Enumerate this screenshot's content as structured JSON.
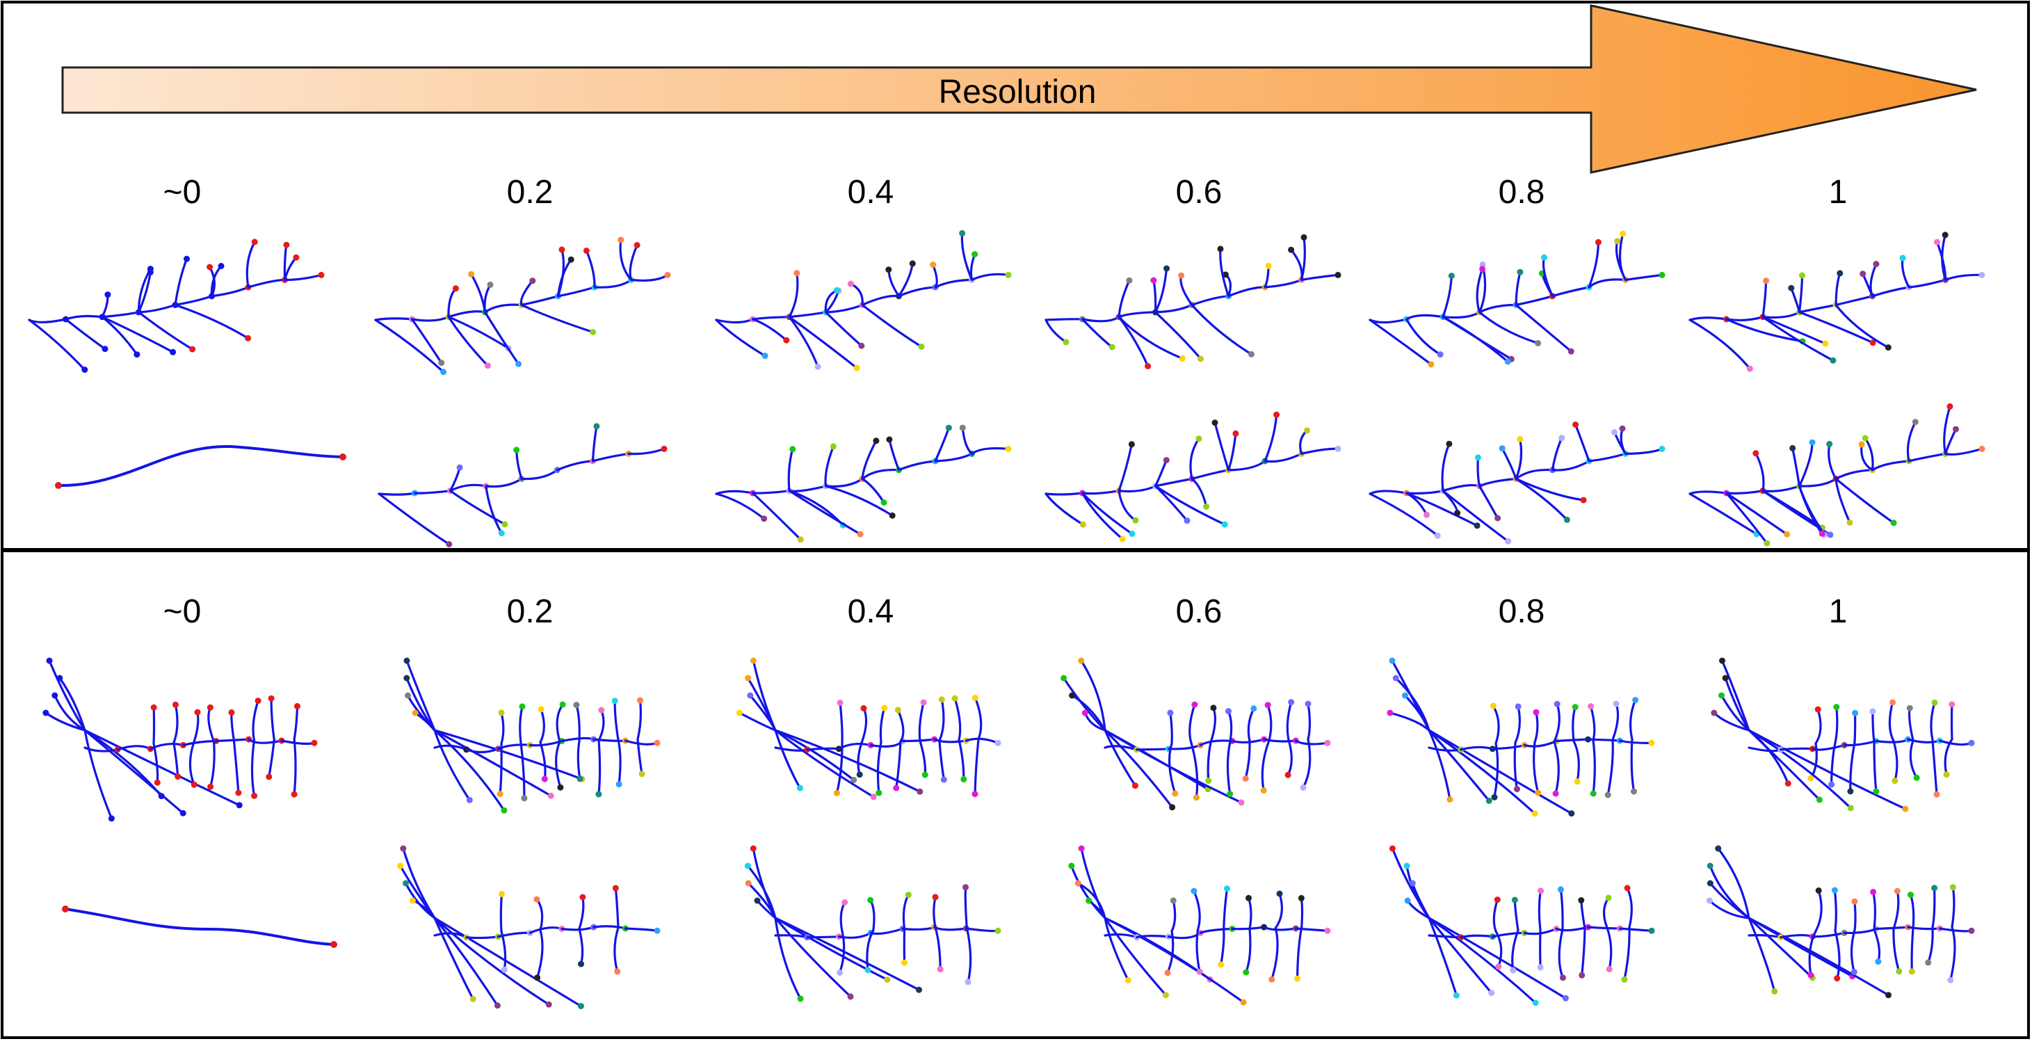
{
  "arrow": {
    "label": "Resolution",
    "gradient_start": "#fde7d3",
    "gradient_end": "#f9952e"
  },
  "panels": [
    {
      "resolution_labels": [
        "~0",
        "0.2",
        "0.4",
        "0.6",
        "0.8",
        "1"
      ]
    },
    {
      "resolution_labels": [
        "~0",
        "0.2",
        "0.4",
        "0.6",
        "0.8",
        "1"
      ]
    }
  ],
  "colors": {
    "branch": "#1414e6",
    "low_resolution_node": "#e81a1a",
    "frame": "#000000",
    "node_palette": [
      "#e81a1a",
      "#15c515",
      "#1fd1e8",
      "#e21ad4",
      "#f5a11a",
      "#6b6bff",
      "#16365a",
      "#c7c71a",
      "#8a3b8a",
      "#1a8a7a",
      "#f071c8",
      "#8fd11a",
      "#222222",
      "#b0b0ff",
      "#ffd400",
      "#7f7f7f",
      "#ff7f50",
      "#2fa0ff"
    ]
  },
  "icons": {
    "tree": "neuron-skeleton-icon"
  }
}
